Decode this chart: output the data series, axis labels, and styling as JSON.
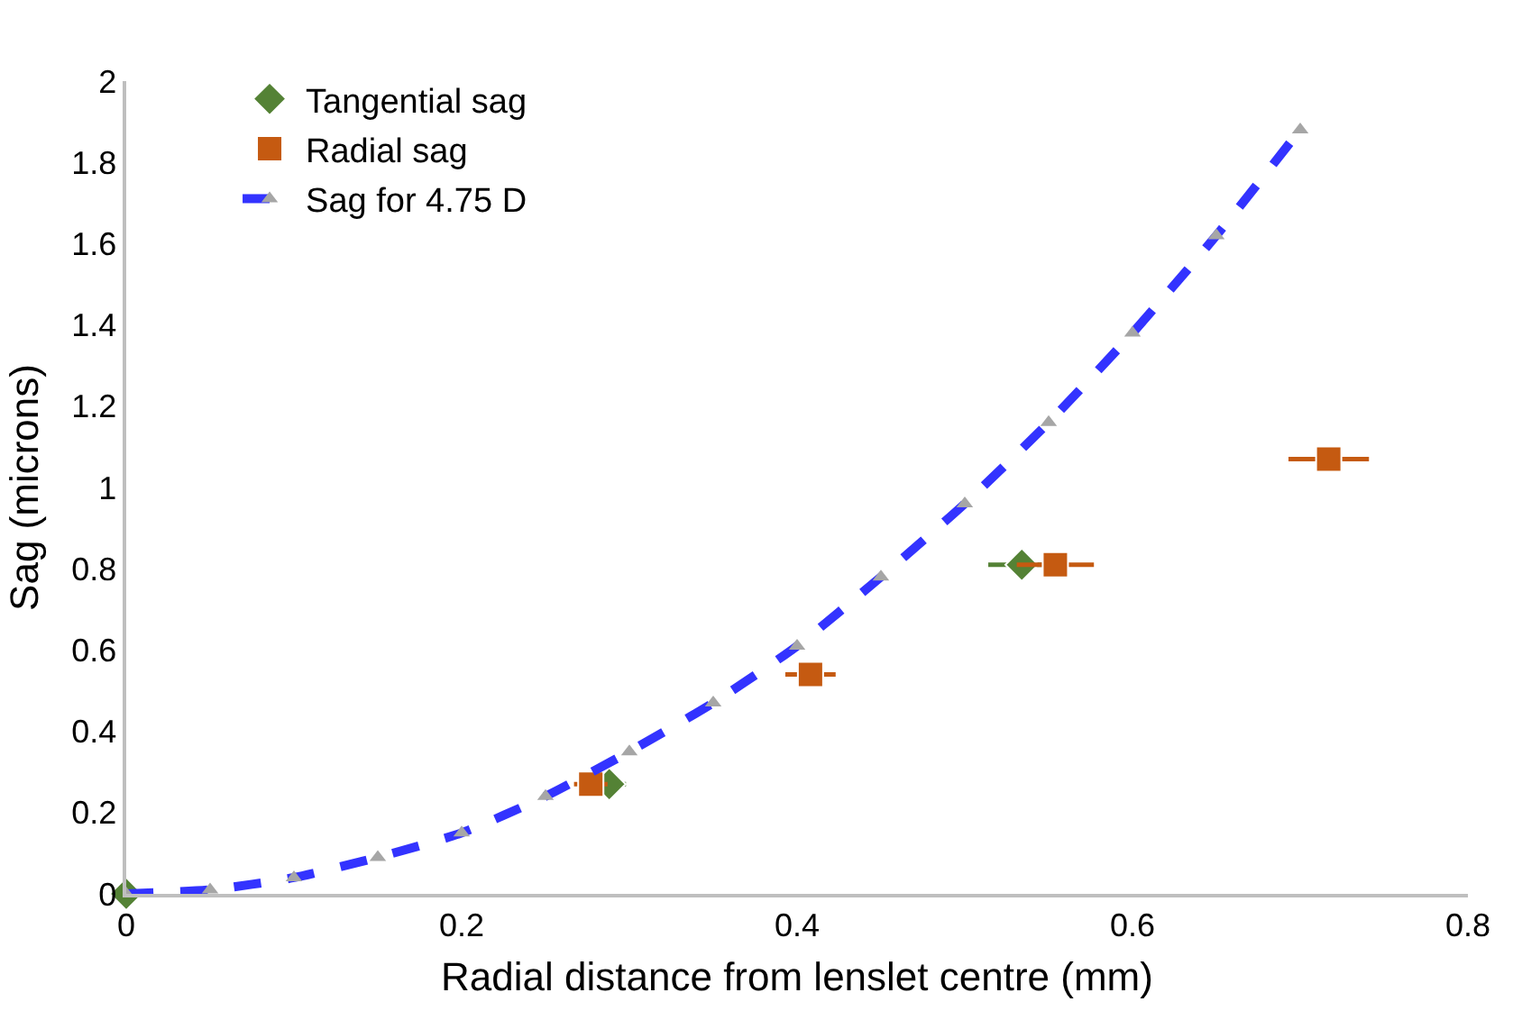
{
  "chart_data": {
    "type": "scatter",
    "xlabel": "Radial distance from lenslet centre (mm)",
    "ylabel": "Sag (microns)",
    "xlim": [
      0,
      0.8
    ],
    "xticks": [
      0,
      0.2,
      0.4,
      0.6,
      0.8
    ],
    "ylim": [
      0,
      2
    ],
    "yticks": [
      0,
      0.2,
      0.4,
      0.6,
      0.8,
      1,
      1.2,
      1.4,
      1.6,
      1.8,
      2
    ],
    "grid": false,
    "legend": "top left",
    "series": [
      {
        "name": "Tangential sag",
        "color": "#548235",
        "marker": "diamond",
        "x": [
          0,
          0.288,
          0.408,
          0.534
        ],
        "values": [
          0,
          0.27,
          null,
          0.81
        ],
        "xerrors": [
          null,
          0.01,
          null,
          0.02
        ]
      },
      {
        "name": "Radial sag",
        "color": "#c55a11",
        "marker": "square",
        "x": [
          0.277,
          0.408,
          0.554,
          0.717
        ],
        "values": [
          0.27,
          0.54,
          0.81,
          1.07
        ],
        "xerrors": [
          0.01,
          0.015,
          0.023,
          0.024
        ]
      },
      {
        "name": "Sag for 4.75 D",
        "type": "line",
        "color": "#3333ff",
        "marker": "triangle",
        "line_style": "dashed",
        "x": [
          0,
          0.05,
          0.1,
          0.15,
          0.2,
          0.25,
          0.3,
          0.35,
          0.4,
          0.45,
          0.5,
          0.55,
          0.6,
          0.65,
          0.7
        ],
        "values": [
          0,
          0.01,
          0.04,
          0.09,
          0.15,
          0.24,
          0.35,
          0.47,
          0.61,
          0.78,
          0.96,
          1.16,
          1.38,
          1.62,
          1.88
        ]
      }
    ]
  }
}
